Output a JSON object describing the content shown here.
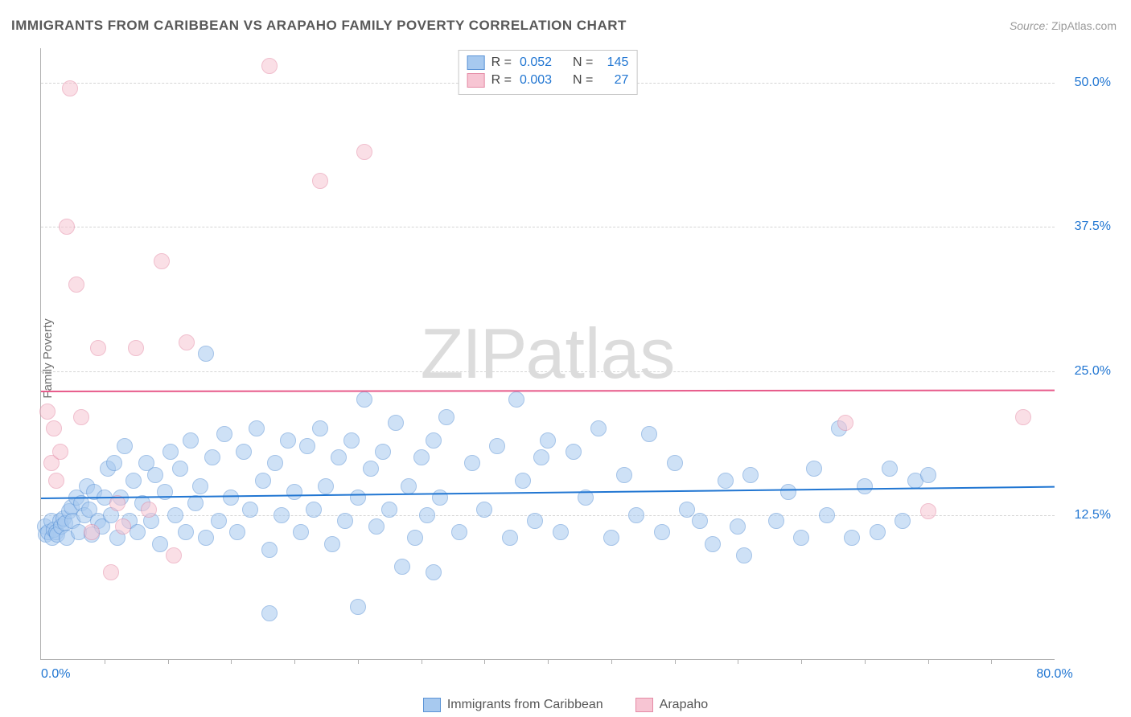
{
  "title": "IMMIGRANTS FROM CARIBBEAN VS ARAPAHO FAMILY POVERTY CORRELATION CHART",
  "source_label": "Source:",
  "source_value": "ZipAtlas.com",
  "ylabel": "Family Poverty",
  "watermark_a": "ZIP",
  "watermark_b": "atlas",
  "chart": {
    "type": "scatter",
    "xlim": [
      0,
      80
    ],
    "ylim": [
      0,
      53
    ],
    "x_axis_start_label": "0.0%",
    "x_axis_end_label": "80.0%",
    "x_ticks": [
      5,
      10,
      15,
      20,
      25,
      30,
      35,
      40,
      45,
      50,
      55,
      60,
      65,
      70,
      75
    ],
    "y_gridlines": [
      {
        "value": 12.5,
        "label": "12.5%"
      },
      {
        "value": 25.0,
        "label": "25.0%"
      },
      {
        "value": 37.5,
        "label": "37.5%"
      },
      {
        "value": 50.0,
        "label": "50.0%"
      }
    ],
    "background_color": "#ffffff",
    "grid_color": "#d5d5d5",
    "axis_color": "#B0B0B0",
    "tick_label_color": "#2176d2",
    "marker_radius": 9,
    "marker_opacity": 0.55,
    "series": [
      {
        "name": "Immigrants from Caribbean",
        "color_fill": "#a7c9ef",
        "color_stroke": "#5b93d6",
        "trend_color": "#2176d2",
        "trend_y_start": 14.0,
        "trend_y_end": 15.0,
        "R": "0.052",
        "N": "145",
        "points": [
          [
            0.3,
            11.5
          ],
          [
            0.4,
            10.8
          ],
          [
            0.6,
            11.0
          ],
          [
            0.8,
            12.0
          ],
          [
            0.9,
            10.5
          ],
          [
            1.0,
            11.2
          ],
          [
            1.2,
            11.0
          ],
          [
            1.3,
            10.8
          ],
          [
            1.5,
            12.0
          ],
          [
            1.6,
            11.5
          ],
          [
            1.8,
            12.2
          ],
          [
            1.9,
            11.8
          ],
          [
            2.0,
            10.5
          ],
          [
            2.2,
            12.8
          ],
          [
            2.4,
            13.2
          ],
          [
            2.5,
            12.0
          ],
          [
            2.8,
            14.0
          ],
          [
            3.0,
            11.0
          ],
          [
            3.2,
            13.5
          ],
          [
            3.4,
            12.5
          ],
          [
            3.6,
            15.0
          ],
          [
            3.8,
            13.0
          ],
          [
            4.0,
            10.8
          ],
          [
            4.2,
            14.5
          ],
          [
            4.5,
            12.0
          ],
          [
            4.8,
            11.5
          ],
          [
            5.0,
            14.0
          ],
          [
            5.3,
            16.5
          ],
          [
            5.5,
            12.5
          ],
          [
            5.8,
            17.0
          ],
          [
            6.0,
            10.5
          ],
          [
            6.3,
            14.0
          ],
          [
            6.6,
            18.5
          ],
          [
            7.0,
            12.0
          ],
          [
            7.3,
            15.5
          ],
          [
            7.6,
            11.0
          ],
          [
            8.0,
            13.5
          ],
          [
            8.3,
            17.0
          ],
          [
            8.7,
            12.0
          ],
          [
            9.0,
            16.0
          ],
          [
            9.4,
            10.0
          ],
          [
            9.8,
            14.5
          ],
          [
            10.2,
            18.0
          ],
          [
            10.6,
            12.5
          ],
          [
            11.0,
            16.5
          ],
          [
            11.4,
            11.0
          ],
          [
            11.8,
            19.0
          ],
          [
            12.2,
            13.5
          ],
          [
            12.6,
            15.0
          ],
          [
            13.0,
            10.5
          ],
          [
            13.0,
            26.5
          ],
          [
            13.5,
            17.5
          ],
          [
            14.0,
            12.0
          ],
          [
            14.5,
            19.5
          ],
          [
            15.0,
            14.0
          ],
          [
            15.5,
            11.0
          ],
          [
            16.0,
            18.0
          ],
          [
            16.5,
            13.0
          ],
          [
            17.0,
            20.0
          ],
          [
            17.5,
            15.5
          ],
          [
            18.0,
            9.5
          ],
          [
            18.0,
            4.0
          ],
          [
            18.5,
            17.0
          ],
          [
            19.0,
            12.5
          ],
          [
            19.5,
            19.0
          ],
          [
            20.0,
            14.5
          ],
          [
            20.5,
            11.0
          ],
          [
            21.0,
            18.5
          ],
          [
            21.5,
            13.0
          ],
          [
            22.0,
            20.0
          ],
          [
            22.5,
            15.0
          ],
          [
            23.0,
            10.0
          ],
          [
            23.5,
            17.5
          ],
          [
            24.0,
            12.0
          ],
          [
            24.5,
            19.0
          ],
          [
            25.0,
            14.0
          ],
          [
            25.0,
            4.5
          ],
          [
            25.5,
            22.5
          ],
          [
            26.0,
            16.5
          ],
          [
            26.5,
            11.5
          ],
          [
            27.0,
            18.0
          ],
          [
            27.5,
            13.0
          ],
          [
            28.0,
            20.5
          ],
          [
            28.5,
            8.0
          ],
          [
            29.0,
            15.0
          ],
          [
            29.5,
            10.5
          ],
          [
            30.0,
            17.5
          ],
          [
            30.5,
            12.5
          ],
          [
            31.0,
            19.0
          ],
          [
            31.0,
            7.5
          ],
          [
            31.5,
            14.0
          ],
          [
            32.0,
            21.0
          ],
          [
            33.0,
            11.0
          ],
          [
            34.0,
            17.0
          ],
          [
            35.0,
            13.0
          ],
          [
            36.0,
            18.5
          ],
          [
            37.0,
            10.5
          ],
          [
            37.5,
            22.5
          ],
          [
            38.0,
            15.5
          ],
          [
            39.0,
            12.0
          ],
          [
            39.5,
            17.5
          ],
          [
            40.0,
            19.0
          ],
          [
            41.0,
            11.0
          ],
          [
            42.0,
            18.0
          ],
          [
            43.0,
            14.0
          ],
          [
            44.0,
            20.0
          ],
          [
            45.0,
            10.5
          ],
          [
            46.0,
            16.0
          ],
          [
            47.0,
            12.5
          ],
          [
            48.0,
            19.5
          ],
          [
            49.0,
            11.0
          ],
          [
            50.0,
            17.0
          ],
          [
            51.0,
            13.0
          ],
          [
            52.0,
            12.0
          ],
          [
            53.0,
            10.0
          ],
          [
            54.0,
            15.5
          ],
          [
            55.0,
            11.5
          ],
          [
            55.5,
            9.0
          ],
          [
            56.0,
            16.0
          ],
          [
            58.0,
            12.0
          ],
          [
            59.0,
            14.5
          ],
          [
            60.0,
            10.5
          ],
          [
            61.0,
            16.5
          ],
          [
            62.0,
            12.5
          ],
          [
            63.0,
            20.0
          ],
          [
            64.0,
            10.5
          ],
          [
            65.0,
            15.0
          ],
          [
            66.0,
            11.0
          ],
          [
            67.0,
            16.5
          ],
          [
            68.0,
            12.0
          ],
          [
            69.0,
            15.5
          ],
          [
            70.0,
            16.0
          ]
        ]
      },
      {
        "name": "Arapaho",
        "color_fill": "#f7c5d3",
        "color_stroke": "#e48aa5",
        "trend_color": "#e75a8a",
        "trend_y_start": 23.3,
        "trend_y_end": 23.4,
        "R": "0.003",
        "N": "27",
        "points": [
          [
            0.5,
            21.5
          ],
          [
            0.8,
            17.0
          ],
          [
            1.0,
            20.0
          ],
          [
            1.2,
            15.5
          ],
          [
            1.5,
            18.0
          ],
          [
            2.0,
            37.5
          ],
          [
            2.3,
            49.5
          ],
          [
            2.8,
            32.5
          ],
          [
            3.2,
            21.0
          ],
          [
            4.0,
            11.0
          ],
          [
            4.5,
            27.0
          ],
          [
            5.5,
            7.5
          ],
          [
            6.0,
            13.5
          ],
          [
            6.5,
            11.5
          ],
          [
            7.5,
            27.0
          ],
          [
            8.5,
            13.0
          ],
          [
            9.5,
            34.5
          ],
          [
            10.5,
            9.0
          ],
          [
            11.5,
            27.5
          ],
          [
            18.0,
            51.5
          ],
          [
            22.0,
            41.5
          ],
          [
            25.5,
            44.0
          ],
          [
            63.5,
            20.5
          ],
          [
            70.0,
            12.8
          ],
          [
            77.5,
            21.0
          ]
        ]
      }
    ]
  },
  "legend_top_labels": {
    "R": "R =",
    "N": "N ="
  },
  "bottom_legend": [
    {
      "label": "Immigrants from Caribbean",
      "fill": "#a7c9ef",
      "stroke": "#5b93d6"
    },
    {
      "label": "Arapaho",
      "fill": "#f7c5d3",
      "stroke": "#e48aa5"
    }
  ]
}
